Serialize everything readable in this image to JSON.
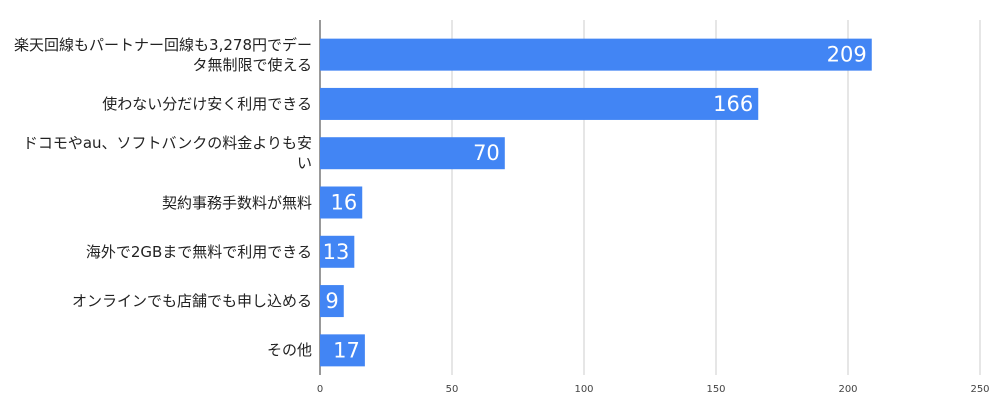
{
  "chart_data": {
    "type": "bar",
    "orientation": "horizontal",
    "categories": [
      "楽天回線もパートナー回線も3,278円でデータ無制限で使える",
      "使わない分だけ安く利用できる",
      "ドコモやau、ソフトバンクの料金よりも安い",
      "契約事務手数料が無料",
      "海外で2GBまで無料で利用できる",
      "オンラインでも店舗でも申し込める",
      "その他"
    ],
    "values": [
      209,
      166,
      70,
      16,
      13,
      9,
      17
    ],
    "color": "#4285f4",
    "xlim": [
      0,
      250
    ],
    "xticks": [
      0,
      50,
      100,
      150,
      200,
      250
    ],
    "grid": true
  }
}
